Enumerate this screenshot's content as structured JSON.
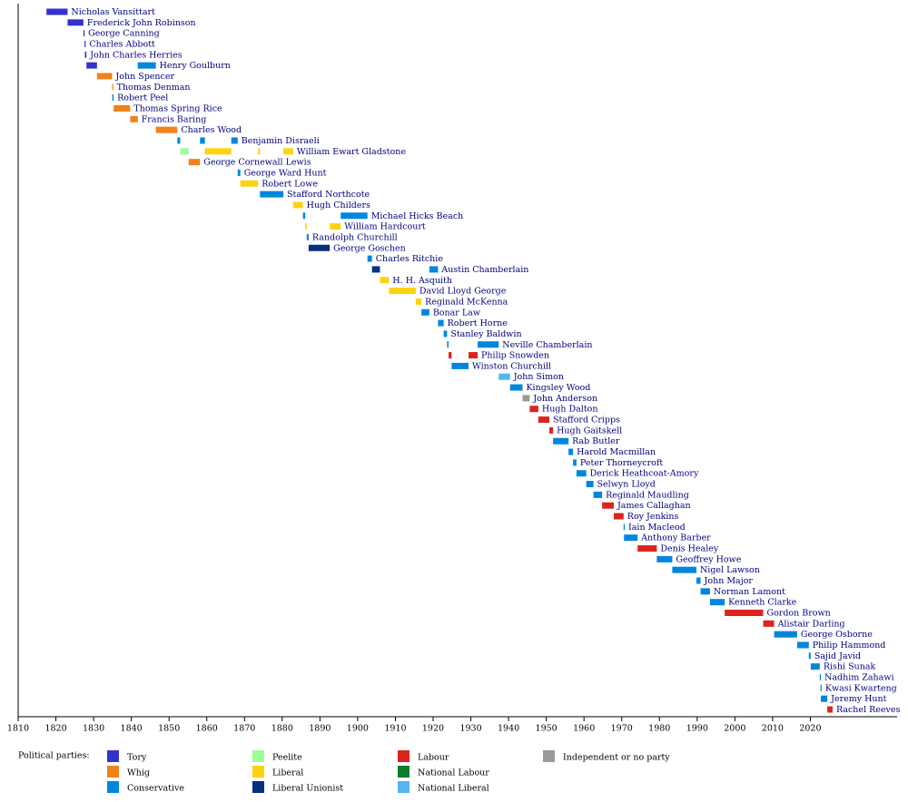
{
  "chart_data": {
    "type": "timeline",
    "legend_title": "Political parties:",
    "xlim": [
      1810,
      2043
    ],
    "xticks": [
      1810,
      1820,
      1830,
      1840,
      1850,
      1860,
      1870,
      1880,
      1890,
      1900,
      1910,
      1920,
      1930,
      1940,
      1950,
      1960,
      1970,
      1980,
      1990,
      2000,
      2010,
      2020
    ],
    "parties": [
      {
        "name": "Tory",
        "color": "#3333cc"
      },
      {
        "name": "Whig",
        "color": "#f0821e"
      },
      {
        "name": "Conservative",
        "color": "#0087dc"
      },
      {
        "name": "Peelite",
        "color": "#99ff99"
      },
      {
        "name": "Liberal",
        "color": "#fdd20f"
      },
      {
        "name": "Liberal Unionist",
        "color": "#06307e"
      },
      {
        "name": "Labour",
        "color": "#dc241f"
      },
      {
        "name": "National Labour",
        "color": "#0a7d2b"
      },
      {
        "name": "National Liberal",
        "color": "#55b6ee"
      },
      {
        "name": "Independent or no party",
        "color": "#999999"
      }
    ],
    "rows": [
      {
        "name": "Nicholas Vansittart",
        "segments": [
          {
            "start": 1817.5,
            "end": 1823.1,
            "party": "Tory"
          }
        ]
      },
      {
        "name": "Frederick John Robinson",
        "segments": [
          {
            "start": 1823.1,
            "end": 1827.3,
            "party": "Tory"
          }
        ]
      },
      {
        "name": "George Canning",
        "segments": [
          {
            "start": 1827.3,
            "end": 1827.6,
            "party": "Tory"
          }
        ]
      },
      {
        "name": "Charles Abbott",
        "segments": [
          {
            "start": 1827.6,
            "end": 1827.7,
            "party": "Tory"
          }
        ]
      },
      {
        "name": "John Charles Herries",
        "segments": [
          {
            "start": 1827.7,
            "end": 1828.1,
            "party": "Tory"
          }
        ]
      },
      {
        "name": "Henry Goulburn",
        "segments": [
          {
            "start": 1828.1,
            "end": 1830.9,
            "party": "Tory"
          },
          {
            "start": 1841.7,
            "end": 1846.5,
            "party": "Conservative"
          }
        ]
      },
      {
        "name": "John Spencer",
        "segments": [
          {
            "start": 1830.9,
            "end": 1834.9,
            "party": "Whig"
          }
        ]
      },
      {
        "name": "Thomas Denman",
        "segments": [
          {
            "start": 1834.9,
            "end": 1834.95,
            "party": "Whig"
          }
        ]
      },
      {
        "name": "Robert Peel",
        "segments": [
          {
            "start": 1834.95,
            "end": 1835.3,
            "party": "Conservative"
          }
        ]
      },
      {
        "name": "Thomas Spring Rice",
        "segments": [
          {
            "start": 1835.3,
            "end": 1839.7,
            "party": "Whig"
          }
        ]
      },
      {
        "name": "Francis Baring",
        "segments": [
          {
            "start": 1839.7,
            "end": 1841.7,
            "party": "Whig"
          }
        ]
      },
      {
        "name": "Charles Wood",
        "segments": [
          {
            "start": 1846.5,
            "end": 1852.2,
            "party": "Whig"
          }
        ]
      },
      {
        "name": "Benjamin Disraeli",
        "segments": [
          {
            "start": 1852.2,
            "end": 1852.95,
            "party": "Conservative"
          },
          {
            "start": 1858.2,
            "end": 1859.5,
            "party": "Conservative"
          },
          {
            "start": 1866.5,
            "end": 1868.2,
            "party": "Conservative"
          }
        ]
      },
      {
        "name": "William Ewart Gladstone",
        "segments": [
          {
            "start": 1852.95,
            "end": 1855.2,
            "party": "Peelite"
          },
          {
            "start": 1859.5,
            "end": 1866.5,
            "party": "Liberal"
          },
          {
            "start": 1873.6,
            "end": 1874.1,
            "party": "Liberal"
          },
          {
            "start": 1880.3,
            "end": 1882.9,
            "party": "Liberal"
          }
        ]
      },
      {
        "name": "George Cornewall Lewis",
        "segments": [
          {
            "start": 1855.2,
            "end": 1858.2,
            "party": "Whig"
          }
        ]
      },
      {
        "name": "George Ward Hunt",
        "segments": [
          {
            "start": 1868.2,
            "end": 1868.9,
            "party": "Conservative"
          }
        ]
      },
      {
        "name": "Robert Lowe",
        "segments": [
          {
            "start": 1868.9,
            "end": 1873.6,
            "party": "Liberal"
          }
        ]
      },
      {
        "name": "Stafford Northcote",
        "segments": [
          {
            "start": 1874.1,
            "end": 1880.3,
            "party": "Conservative"
          }
        ]
      },
      {
        "name": "Hugh Childers",
        "segments": [
          {
            "start": 1882.9,
            "end": 1885.5,
            "party": "Liberal"
          }
        ]
      },
      {
        "name": "Michael Hicks Beach",
        "segments": [
          {
            "start": 1885.5,
            "end": 1886.1,
            "party": "Conservative"
          },
          {
            "start": 1895.5,
            "end": 1902.6,
            "party": "Conservative"
          }
        ]
      },
      {
        "name": "William Hardcourt",
        "segments": [
          {
            "start": 1886.1,
            "end": 1886.5,
            "party": "Liberal"
          },
          {
            "start": 1892.6,
            "end": 1895.5,
            "party": "Liberal"
          }
        ]
      },
      {
        "name": "Randolph Churchill",
        "segments": [
          {
            "start": 1886.5,
            "end": 1887.0,
            "party": "Conservative"
          }
        ]
      },
      {
        "name": "George Goschen",
        "segments": [
          {
            "start": 1887.0,
            "end": 1892.6,
            "party": "Liberal Unionist"
          }
        ]
      },
      {
        "name": "Charles Ritchie",
        "segments": [
          {
            "start": 1902.6,
            "end": 1903.8,
            "party": "Conservative"
          }
        ]
      },
      {
        "name": "Austin Chamberlain",
        "segments": [
          {
            "start": 1903.8,
            "end": 1905.9,
            "party": "Liberal Unionist"
          },
          {
            "start": 1919.0,
            "end": 1921.3,
            "party": "Conservative"
          }
        ]
      },
      {
        "name": "H. H. Asquith",
        "segments": [
          {
            "start": 1905.9,
            "end": 1908.3,
            "party": "Liberal"
          }
        ]
      },
      {
        "name": "David Lloyd George",
        "segments": [
          {
            "start": 1908.3,
            "end": 1915.4,
            "party": "Liberal"
          }
        ]
      },
      {
        "name": "Reginald McKenna",
        "segments": [
          {
            "start": 1915.4,
            "end": 1916.9,
            "party": "Liberal"
          }
        ]
      },
      {
        "name": "Bonar Law",
        "segments": [
          {
            "start": 1916.9,
            "end": 1919.0,
            "party": "Conservative"
          }
        ]
      },
      {
        "name": "Robert Horne",
        "segments": [
          {
            "start": 1921.3,
            "end": 1922.8,
            "party": "Conservative"
          }
        ]
      },
      {
        "name": "Stanley Baldwin",
        "segments": [
          {
            "start": 1922.8,
            "end": 1923.7,
            "party": "Conservative"
          }
        ]
      },
      {
        "name": "Neville Chamberlain",
        "segments": [
          {
            "start": 1923.7,
            "end": 1924.1,
            "party": "Conservative"
          },
          {
            "start": 1931.8,
            "end": 1937.4,
            "party": "Conservative"
          }
        ]
      },
      {
        "name": "Philip Snowden",
        "segments": [
          {
            "start": 1924.1,
            "end": 1924.9,
            "party": "Labour"
          },
          {
            "start": 1929.4,
            "end": 1931.8,
            "party": "Labour"
          }
        ]
      },
      {
        "name": "Winston Churchill",
        "segments": [
          {
            "start": 1924.9,
            "end": 1929.4,
            "party": "Conservative"
          }
        ]
      },
      {
        "name": "John Simon",
        "segments": [
          {
            "start": 1937.4,
            "end": 1940.4,
            "party": "National Liberal"
          }
        ]
      },
      {
        "name": "Kingsley Wood",
        "segments": [
          {
            "start": 1940.4,
            "end": 1943.7,
            "party": "Conservative"
          }
        ]
      },
      {
        "name": "John Anderson",
        "segments": [
          {
            "start": 1943.7,
            "end": 1945.6,
            "party": "Independent or no party"
          }
        ]
      },
      {
        "name": "Hugh Dalton",
        "segments": [
          {
            "start": 1945.6,
            "end": 1947.9,
            "party": "Labour"
          }
        ]
      },
      {
        "name": "Stafford Cripps",
        "segments": [
          {
            "start": 1947.9,
            "end": 1950.8,
            "party": "Labour"
          }
        ]
      },
      {
        "name": "Hugh Gaitskell",
        "segments": [
          {
            "start": 1950.8,
            "end": 1951.8,
            "party": "Labour"
          }
        ]
      },
      {
        "name": "Rab Butler",
        "segments": [
          {
            "start": 1951.8,
            "end": 1955.9,
            "party": "Conservative"
          }
        ]
      },
      {
        "name": "Harold Macmillan",
        "segments": [
          {
            "start": 1955.9,
            "end": 1957.1,
            "party": "Conservative"
          }
        ]
      },
      {
        "name": "Peter Thorneycroft",
        "segments": [
          {
            "start": 1957.1,
            "end": 1958.0,
            "party": "Conservative"
          }
        ]
      },
      {
        "name": "Derick Heathcoat-Amory",
        "segments": [
          {
            "start": 1958.0,
            "end": 1960.6,
            "party": "Conservative"
          }
        ]
      },
      {
        "name": "Selwyn Lloyd",
        "segments": [
          {
            "start": 1960.6,
            "end": 1962.5,
            "party": "Conservative"
          }
        ]
      },
      {
        "name": "Reginald Maudling",
        "segments": [
          {
            "start": 1962.5,
            "end": 1964.8,
            "party": "Conservative"
          }
        ]
      },
      {
        "name": "James Callaghan",
        "segments": [
          {
            "start": 1964.8,
            "end": 1967.9,
            "party": "Labour"
          }
        ]
      },
      {
        "name": "Roy Jenkins",
        "segments": [
          {
            "start": 1967.9,
            "end": 1970.5,
            "party": "Labour"
          }
        ]
      },
      {
        "name": "Iain Macleod",
        "segments": [
          {
            "start": 1970.5,
            "end": 1970.6,
            "party": "Conservative"
          }
        ]
      },
      {
        "name": "Anthony Barber",
        "segments": [
          {
            "start": 1970.6,
            "end": 1974.2,
            "party": "Conservative"
          }
        ]
      },
      {
        "name": "Denis Healey",
        "segments": [
          {
            "start": 1974.2,
            "end": 1979.3,
            "party": "Labour"
          }
        ]
      },
      {
        "name": "Geoffrey Howe",
        "segments": [
          {
            "start": 1979.3,
            "end": 1983.4,
            "party": "Conservative"
          }
        ]
      },
      {
        "name": "Nigel Lawson",
        "segments": [
          {
            "start": 1983.4,
            "end": 1989.8,
            "party": "Conservative"
          }
        ]
      },
      {
        "name": "John Major",
        "segments": [
          {
            "start": 1989.8,
            "end": 1990.9,
            "party": "Conservative"
          }
        ]
      },
      {
        "name": "Norman Lamont",
        "segments": [
          {
            "start": 1990.9,
            "end": 1993.4,
            "party": "Conservative"
          }
        ]
      },
      {
        "name": "Kenneth Clarke",
        "segments": [
          {
            "start": 1993.4,
            "end": 1997.3,
            "party": "Conservative"
          }
        ]
      },
      {
        "name": "Gordon Brown",
        "segments": [
          {
            "start": 1997.3,
            "end": 2007.5,
            "party": "Labour"
          }
        ]
      },
      {
        "name": "Alistair Darling",
        "segments": [
          {
            "start": 2007.5,
            "end": 2010.4,
            "party": "Labour"
          }
        ]
      },
      {
        "name": "George Osborne",
        "segments": [
          {
            "start": 2010.4,
            "end": 2016.5,
            "party": "Conservative"
          }
        ]
      },
      {
        "name": "Philip Hammond",
        "segments": [
          {
            "start": 2016.5,
            "end": 2019.6,
            "party": "Conservative"
          }
        ]
      },
      {
        "name": "Sajid Javid",
        "segments": [
          {
            "start": 2019.6,
            "end": 2020.1,
            "party": "Conservative"
          }
        ]
      },
      {
        "name": "Rishi Sunak",
        "segments": [
          {
            "start": 2020.1,
            "end": 2022.5,
            "party": "Conservative"
          }
        ]
      },
      {
        "name": "Nadhim Zahawi",
        "segments": [
          {
            "start": 2022.5,
            "end": 2022.7,
            "party": "Conservative"
          }
        ]
      },
      {
        "name": "Kwasi Kwarteng",
        "segments": [
          {
            "start": 2022.7,
            "end": 2022.8,
            "party": "Conservative"
          }
        ]
      },
      {
        "name": "Jeremy Hunt",
        "segments": [
          {
            "start": 2022.8,
            "end": 2024.5,
            "party": "Conservative"
          }
        ]
      },
      {
        "name": "Rachel Reeves",
        "segments": [
          {
            "start": 2024.5,
            "end": 2025.9,
            "party": "Labour"
          }
        ]
      }
    ]
  }
}
